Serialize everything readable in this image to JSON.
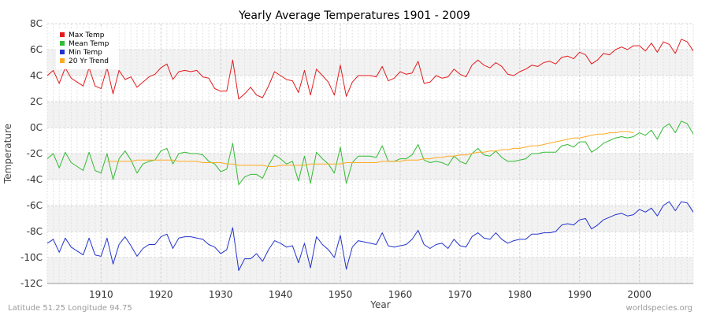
{
  "chart_data": {
    "type": "line",
    "title": "Yearly Average Temperatures 1901 - 2009",
    "xlabel": "Year",
    "ylabel": "Temperature",
    "xlim": [
      1901,
      2009
    ],
    "ylim": [
      -12,
      8
    ],
    "x_ticks": [
      1910,
      1920,
      1930,
      1940,
      1950,
      1960,
      1970,
      1980,
      1990,
      2000
    ],
    "y_ticks": [
      {
        "value": 8,
        "label": "8C"
      },
      {
        "value": 6,
        "label": "6C"
      },
      {
        "value": 4,
        "label": "4C"
      },
      {
        "value": 2,
        "label": "2C"
      },
      {
        "value": 0,
        "label": "0C"
      },
      {
        "value": -2,
        "label": "-2C"
      },
      {
        "value": -4,
        "label": "-4C"
      },
      {
        "value": -6,
        "label": "-6C"
      },
      {
        "value": -8,
        "label": "-8C"
      },
      {
        "value": -10,
        "label": "-10C"
      },
      {
        "value": -12,
        "label": "-12C"
      }
    ],
    "grid": true,
    "legend_position": "top-left",
    "x": [
      1901,
      1902,
      1903,
      1904,
      1905,
      1906,
      1907,
      1908,
      1909,
      1910,
      1911,
      1912,
      1913,
      1914,
      1915,
      1916,
      1917,
      1918,
      1919,
      1920,
      1921,
      1922,
      1923,
      1924,
      1925,
      1926,
      1927,
      1928,
      1929,
      1930,
      1931,
      1932,
      1933,
      1934,
      1935,
      1936,
      1937,
      1938,
      1939,
      1940,
      1941,
      1942,
      1943,
      1944,
      1945,
      1946,
      1947,
      1948,
      1949,
      1950,
      1951,
      1952,
      1953,
      1954,
      1955,
      1956,
      1957,
      1958,
      1959,
      1960,
      1961,
      1962,
      1963,
      1964,
      1965,
      1966,
      1967,
      1968,
      1969,
      1970,
      1971,
      1972,
      1973,
      1974,
      1975,
      1976,
      1977,
      1978,
      1979,
      1980,
      1981,
      1982,
      1983,
      1984,
      1985,
      1986,
      1987,
      1988,
      1989,
      1990,
      1991,
      1992,
      1993,
      1994,
      1995,
      1996,
      1997,
      1998,
      1999,
      2000,
      2001,
      2002,
      2003,
      2004,
      2005,
      2006,
      2007,
      2008,
      2009
    ],
    "series": [
      {
        "name": "Max Temp",
        "color": "#e31a1c",
        "values": [
          4.0,
          4.4,
          3.4,
          4.6,
          3.8,
          3.5,
          3.2,
          4.6,
          3.2,
          3.0,
          4.6,
          2.6,
          4.4,
          3.7,
          3.9,
          3.1,
          3.5,
          3.9,
          4.1,
          4.6,
          4.9,
          3.7,
          4.3,
          4.4,
          4.3,
          4.4,
          3.9,
          3.8,
          3.0,
          2.8,
          2.8,
          5.2,
          2.2,
          2.6,
          3.1,
          2.5,
          2.3,
          3.2,
          4.3,
          4.0,
          3.7,
          3.6,
          2.7,
          4.4,
          2.5,
          4.5,
          4.0,
          3.5,
          2.5,
          4.8,
          2.4,
          3.5,
          4.0,
          4.0,
          4.0,
          3.9,
          4.7,
          3.6,
          3.8,
          4.3,
          4.1,
          4.2,
          5.1,
          3.4,
          3.5,
          4.0,
          3.8,
          3.9,
          4.5,
          4.1,
          3.9,
          4.8,
          5.2,
          4.8,
          4.6,
          5.0,
          4.7,
          4.1,
          4.0,
          4.3,
          4.5,
          4.8,
          4.7,
          5.0,
          5.1,
          4.9,
          5.4,
          5.5,
          5.3,
          5.8,
          5.6,
          4.9,
          5.2,
          5.7,
          5.6,
          6.0,
          6.2,
          6.0,
          6.3,
          6.3,
          5.9,
          6.5,
          5.8,
          6.6,
          6.4,
          5.7,
          6.8,
          6.6,
          5.9
        ]
      },
      {
        "name": "Mean Temp",
        "color": "#33bb33",
        "values": [
          -2.4,
          -2.0,
          -3.1,
          -1.9,
          -2.7,
          -3.0,
          -3.3,
          -1.9,
          -3.3,
          -3.5,
          -2.0,
          -4.0,
          -2.4,
          -1.8,
          -2.5,
          -3.5,
          -2.8,
          -2.6,
          -2.5,
          -1.8,
          -1.6,
          -2.8,
          -2.0,
          -1.9,
          -2.0,
          -2.0,
          -2.1,
          -2.6,
          -2.8,
          -3.4,
          -3.2,
          -1.2,
          -4.4,
          -3.8,
          -3.6,
          -3.6,
          -3.9,
          -2.9,
          -2.1,
          -2.4,
          -2.8,
          -2.6,
          -4.1,
          -2.2,
          -4.3,
          -1.9,
          -2.4,
          -2.8,
          -3.5,
          -1.5,
          -4.3,
          -2.7,
          -2.2,
          -2.2,
          -2.2,
          -2.3,
          -1.4,
          -2.6,
          -2.6,
          -2.4,
          -2.4,
          -2.1,
          -1.3,
          -2.5,
          -2.7,
          -2.6,
          -2.7,
          -2.9,
          -2.2,
          -2.6,
          -2.8,
          -2.0,
          -1.6,
          -2.1,
          -2.2,
          -1.8,
          -2.3,
          -2.6,
          -2.6,
          -2.5,
          -2.4,
          -2.0,
          -2.0,
          -1.9,
          -1.9,
          -1.9,
          -1.4,
          -1.3,
          -1.5,
          -1.1,
          -1.1,
          -1.9,
          -1.6,
          -1.2,
          -1.0,
          -0.8,
          -0.7,
          -0.8,
          -0.7,
          -0.4,
          -0.6,
          -0.2,
          -0.9,
          0.0,
          0.3,
          -0.4,
          0.5,
          0.3,
          -0.5
        ]
      },
      {
        "name": "Min Temp",
        "color": "#2233cc",
        "values": [
          -8.9,
          -8.6,
          -9.6,
          -8.5,
          -9.2,
          -9.5,
          -9.8,
          -8.5,
          -9.8,
          -9.9,
          -8.5,
          -10.5,
          -9.0,
          -8.4,
          -9.1,
          -9.9,
          -9.3,
          -9.0,
          -9.0,
          -8.4,
          -8.2,
          -9.3,
          -8.5,
          -8.4,
          -8.4,
          -8.5,
          -8.6,
          -9.0,
          -9.2,
          -9.7,
          -9.4,
          -7.7,
          -11.0,
          -10.1,
          -10.1,
          -9.7,
          -10.3,
          -9.4,
          -8.7,
          -8.9,
          -9.2,
          -9.1,
          -10.4,
          -8.9,
          -10.8,
          -8.4,
          -9.0,
          -9.4,
          -10.0,
          -8.3,
          -10.9,
          -9.2,
          -8.7,
          -8.8,
          -8.9,
          -9.0,
          -8.1,
          -9.1,
          -9.2,
          -9.1,
          -9.0,
          -8.6,
          -7.9,
          -9.0,
          -9.3,
          -9.0,
          -8.9,
          -9.3,
          -8.6,
          -9.1,
          -9.2,
          -8.4,
          -8.1,
          -8.5,
          -8.6,
          -8.1,
          -8.6,
          -8.9,
          -8.7,
          -8.6,
          -8.6,
          -8.2,
          -8.2,
          -8.1,
          -8.1,
          -8.0,
          -7.5,
          -7.4,
          -7.5,
          -7.1,
          -7.0,
          -7.8,
          -7.5,
          -7.1,
          -6.9,
          -6.7,
          -6.6,
          -6.8,
          -6.7,
          -6.3,
          -6.5,
          -6.2,
          -6.8,
          -6.0,
          -5.7,
          -6.4,
          -5.7,
          -5.8,
          -6.5
        ]
      },
      {
        "name": "20 Yr Trend",
        "color": "#ffaa22",
        "x": [
          1911,
          1912,
          1913,
          1914,
          1915,
          1916,
          1917,
          1918,
          1919,
          1920,
          1921,
          1922,
          1923,
          1924,
          1925,
          1926,
          1927,
          1928,
          1929,
          1930,
          1931,
          1932,
          1933,
          1934,
          1935,
          1936,
          1937,
          1938,
          1939,
          1940,
          1941,
          1942,
          1943,
          1944,
          1945,
          1946,
          1947,
          1948,
          1949,
          1950,
          1951,
          1952,
          1953,
          1954,
          1955,
          1956,
          1957,
          1958,
          1959,
          1960,
          1961,
          1962,
          1963,
          1964,
          1965,
          1966,
          1967,
          1968,
          1969,
          1970,
          1971,
          1972,
          1973,
          1974,
          1975,
          1976,
          1977,
          1978,
          1979,
          1980,
          1981,
          1982,
          1983,
          1984,
          1985,
          1986,
          1987,
          1988,
          1989,
          1990,
          1991,
          1992,
          1993,
          1994,
          1995,
          1996,
          1997,
          1998,
          1999
        ],
        "values": [
          -2.6,
          -2.6,
          -2.6,
          -2.6,
          -2.6,
          -2.5,
          -2.5,
          -2.5,
          -2.5,
          -2.5,
          -2.5,
          -2.5,
          -2.6,
          -2.6,
          -2.6,
          -2.6,
          -2.7,
          -2.7,
          -2.7,
          -2.7,
          -2.8,
          -2.8,
          -2.9,
          -2.9,
          -2.9,
          -2.9,
          -2.9,
          -3.0,
          -3.0,
          -2.9,
          -2.9,
          -2.9,
          -2.9,
          -2.9,
          -2.8,
          -2.8,
          -2.8,
          -2.8,
          -2.8,
          -2.8,
          -2.7,
          -2.7,
          -2.7,
          -2.7,
          -2.7,
          -2.7,
          -2.6,
          -2.6,
          -2.6,
          -2.6,
          -2.5,
          -2.5,
          -2.5,
          -2.4,
          -2.4,
          -2.3,
          -2.3,
          -2.2,
          -2.2,
          -2.1,
          -2.1,
          -2.0,
          -1.9,
          -1.9,
          -1.8,
          -1.8,
          -1.7,
          -1.7,
          -1.6,
          -1.6,
          -1.5,
          -1.4,
          -1.4,
          -1.3,
          -1.2,
          -1.1,
          -1.0,
          -0.9,
          -0.8,
          -0.8,
          -0.7,
          -0.6,
          -0.5,
          -0.5,
          -0.4,
          -0.4,
          -0.3,
          -0.3,
          -0.4
        ]
      }
    ]
  },
  "footer": {
    "location": "Latitude 51.25 Longitude 94.75",
    "source": "worldspecies.org"
  }
}
